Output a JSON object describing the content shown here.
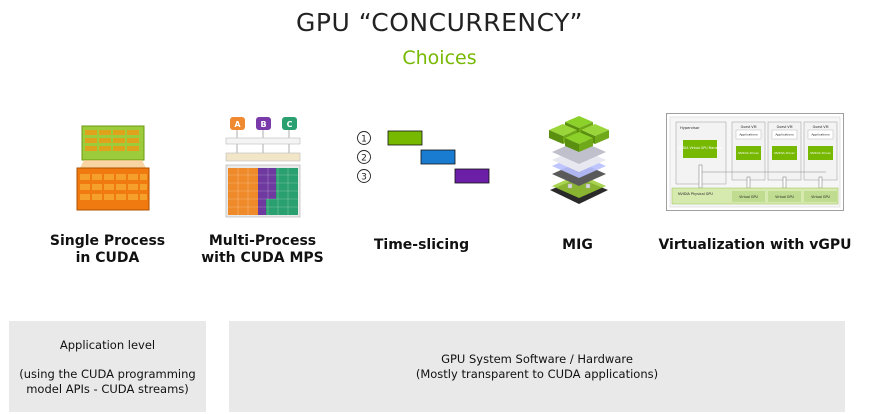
{
  "title": "GPU “CONCURRENCY”",
  "subtitle": "Choices",
  "options": [
    {
      "label_line1": "Single Process",
      "label_line2": "in CUDA"
    },
    {
      "label_line1": "Multi-Process",
      "label_line2": "with CUDA MPS",
      "clients": [
        "A",
        "B",
        "C"
      ]
    },
    {
      "label_line1": "Time-slicing",
      "slots": [
        "1",
        "2",
        "3"
      ]
    },
    {
      "label_line1": "MIG"
    },
    {
      "label_line1": "Virtualization with vGPU",
      "vgpu": {
        "hypervisor": "Hypervisor",
        "manager": "NVIDIA Virtual GPU Manager",
        "guest_vm": "Guest VM",
        "applications": "Applications",
        "driver": "NVIDIA Driver",
        "physical_gpu": "NVIDIA Physical GPU",
        "virtual_gpu": "Virtual GPU"
      }
    }
  ],
  "bottom_left": {
    "line1": "Application level",
    "line2": "(using the CUDA programming",
    "line3": "model APIs - CUDA streams)"
  },
  "bottom_right": {
    "line1": "GPU System Software / Hardware",
    "line2": "(Mostly transparent to CUDA applications)"
  },
  "colors": {
    "accent_green": "#76b900",
    "timeslice_1": "#76b900",
    "timeslice_2": "#1a7cd0",
    "timeslice_3": "#6a1fa6",
    "box_gray": "#e9e9e9"
  }
}
